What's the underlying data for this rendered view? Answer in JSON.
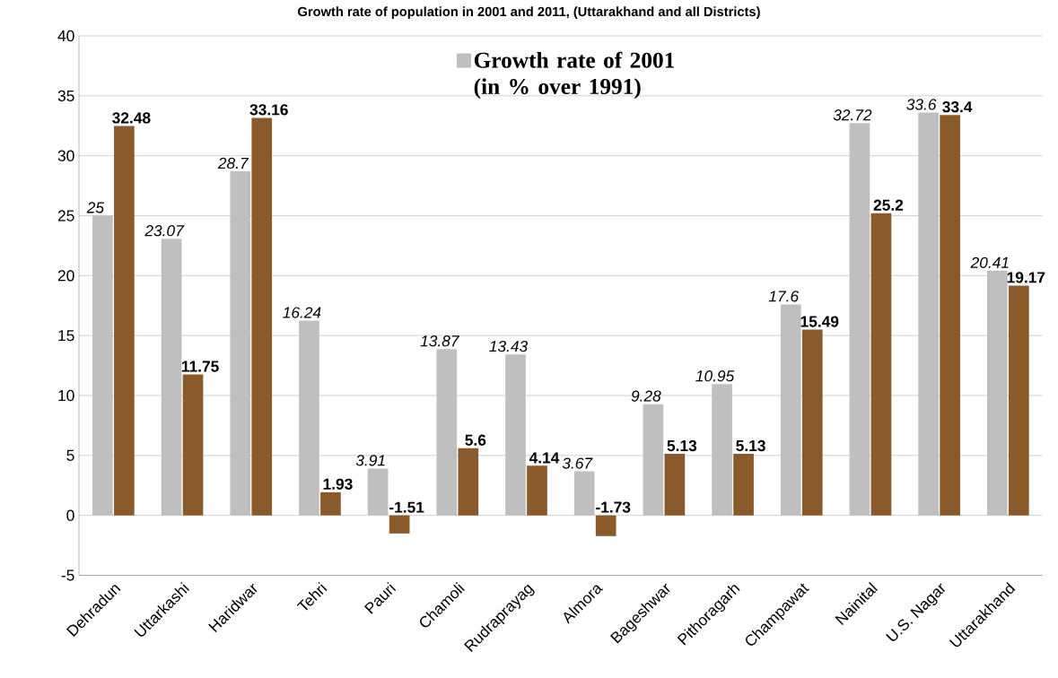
{
  "chart_data": {
    "type": "bar",
    "title": "Growth rate of population in 2001 and 2011, (Uttarakhand and all Districts)",
    "categories": [
      "Dehradun",
      "Uttarkashi",
      "Haridwar",
      "Tehri",
      "Pauri",
      "Chamoli",
      "Rudraprayag",
      "Almora",
      "Bageshwar",
      "Pithoragarh",
      "Champawat",
      "Nainital",
      "U.S. Nagar",
      "Uttarakhand"
    ],
    "series": [
      {
        "name": "Growth rate of 2001 (in % over 1991)",
        "color": "#bfbfbf",
        "values": [
          25,
          23.07,
          28.7,
          16.24,
          3.91,
          13.87,
          13.43,
          3.67,
          9.28,
          10.95,
          17.6,
          32.72,
          33.6,
          20.41
        ]
      },
      {
        "color": "#8b5a2b",
        "values": [
          32.48,
          11.75,
          33.16,
          1.93,
          -1.51,
          5.6,
          4.14,
          -1.73,
          5.13,
          5.13,
          15.49,
          25.2,
          33.4,
          19.17
        ]
      }
    ],
    "ylim": [
      -5,
      40
    ],
    "yticks": [
      -5,
      0,
      5,
      10,
      15,
      20,
      25,
      30,
      35,
      40
    ],
    "grid": "y",
    "legend": "top",
    "data_labels": true
  }
}
